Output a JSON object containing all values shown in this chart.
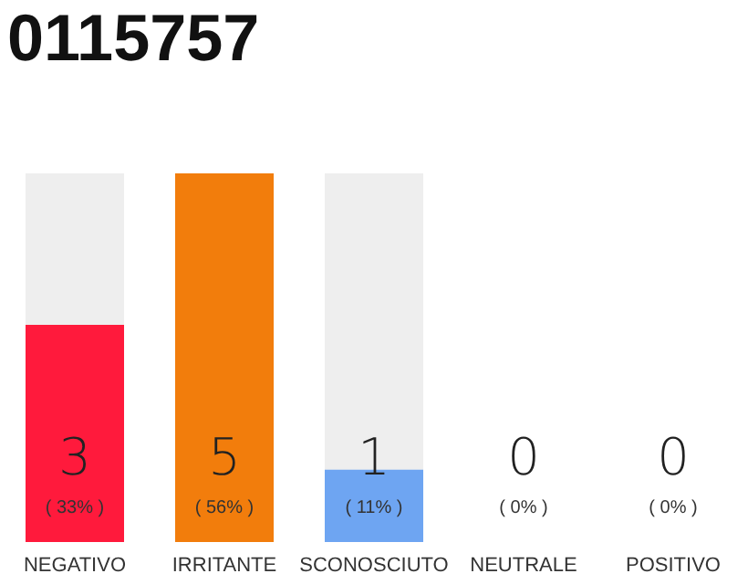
{
  "chart_data": {
    "type": "bar",
    "title": "0115757",
    "categories": [
      "NEGATIVO",
      "IRRITANTE",
      "SCONOSCIUTO",
      "NEUTRALE",
      "POSITIVO"
    ],
    "values": [
      33,
      56,
      11,
      0,
      0
    ],
    "colors": [
      "#ff1a3c",
      "#f27d0c",
      "#6ea5f2",
      "#eeeeee",
      "#eeeeee"
    ],
    "value_labels": [
      "( 33% )",
      "( 56% )",
      "( 11% )",
      "( 0% )",
      "( 0% )"
    ],
    "annotations": [
      "3",
      "5",
      "1",
      "0",
      "0"
    ]
  }
}
